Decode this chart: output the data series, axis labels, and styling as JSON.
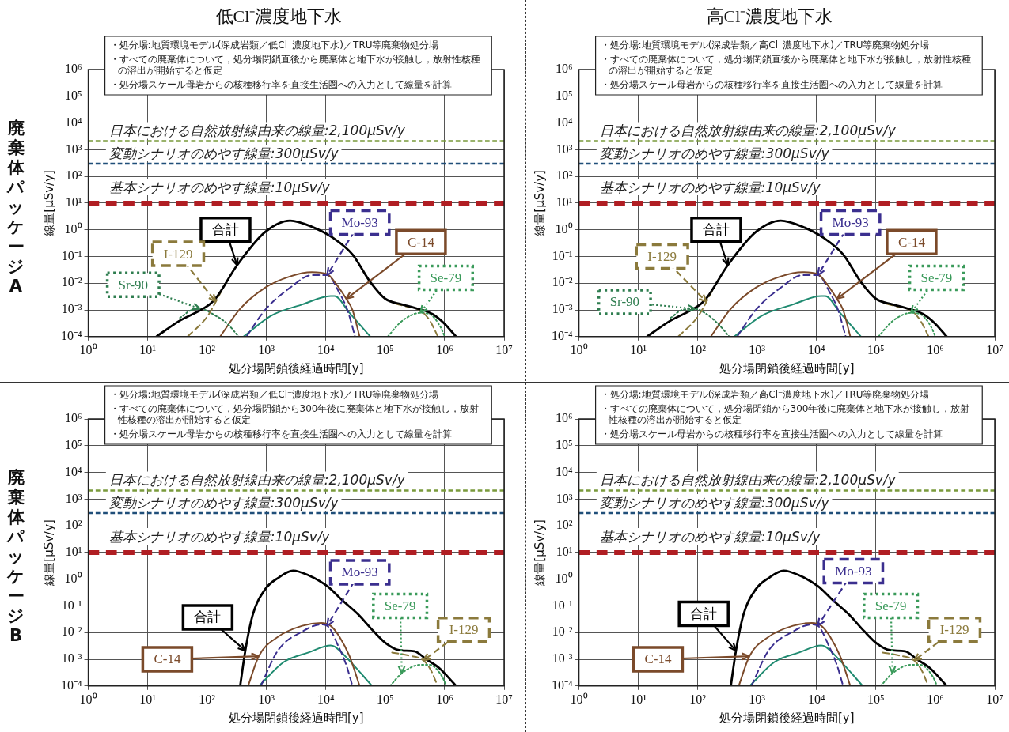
{
  "chart_data": [
    {
      "type": "line",
      "title": "低Cl⁻濃度地下水",
      "subtitle": "廃棄体パッケージA",
      "xlabel": "処分場閉鎖後経過時間[y]",
      "ylabel": "線量[μSv/y]",
      "log": "xy",
      "grid": true,
      "xlim": [
        1,
        10000000
      ],
      "ylim": [
        0.0001,
        1000000
      ],
      "xticks": [
        {
          "value": 1,
          "label": "10⁰"
        },
        {
          "value": 10,
          "label": "10¹"
        },
        {
          "value": 100,
          "label": "10²"
        },
        {
          "value": 1000,
          "label": "10³"
        },
        {
          "value": 10000,
          "label": "10⁴"
        },
        {
          "value": 100000,
          "label": "10⁵"
        },
        {
          "value": 1000000,
          "label": "10⁶"
        },
        {
          "value": 10000000,
          "label": "10⁷"
        }
      ],
      "yticks": [
        {
          "value": 0.0001,
          "label": "10⁻⁴"
        },
        {
          "value": 0.001,
          "label": "10⁻³"
        },
        {
          "value": 0.01,
          "label": "10⁻²"
        },
        {
          "value": 0.1,
          "label": "10⁻¹"
        },
        {
          "value": 1,
          "label": "10⁰"
        },
        {
          "value": 10,
          "label": "10¹"
        },
        {
          "value": 100,
          "label": "10²"
        },
        {
          "value": 1000,
          "label": "10³"
        },
        {
          "value": 10000,
          "label": "10⁴"
        },
        {
          "value": 100000,
          "label": "10⁵"
        },
        {
          "value": 1000000,
          "label": "10⁶"
        }
      ],
      "annotations": [
        "・処分場:地質環境モデル(深成岩類／低Cl⁻濃度地下水)／TRU等廃棄物処分場",
        "・すべての廃棄体について，処分場閉鎖直後から廃棄体と地下水が接触し，放射性核種の溶出が開始すると仮定",
        "・処分場スケール母岩からの核種移行率を直接生活圏への入力として線量を計算"
      ],
      "ref_lines": [
        {
          "axis": "y",
          "value": 2100,
          "label": "日本における自然放射線由来の線量:2,100μSv/y",
          "color": "#7a9a3c",
          "line_style": "dashed"
        },
        {
          "axis": "y",
          "value": 300,
          "label": "変動シナリオのめやす線量:300μSv/y",
          "color": "#1f4e79",
          "line_style": "dashed"
        },
        {
          "axis": "y",
          "value": 10,
          "label": "基本シナリオのめやす線量:10μSv/y",
          "color": "#b01e23",
          "line_style": "dashed"
        }
      ],
      "series": [
        {
          "name": "合計",
          "color": "#000000",
          "line_style": "solid",
          "x": [
            14,
            33,
            110,
            140,
            320,
            950,
            2500,
            5800,
            13000,
            28000,
            56000,
            100000,
            190000,
            310000,
            630000,
            1000000,
            1550000
          ],
          "values": [
            0.0001,
            0.00037,
            0.0016,
            0.0027,
            0.047,
            0.83,
            2.2,
            1.3,
            0.51,
            0.12,
            0.011,
            0.0026,
            0.0016,
            0.0012,
            0.00069,
            0.0003,
            0.0001
          ]
        },
        {
          "name": "I-129",
          "color": "#8b7a3c",
          "line_style": "dashed",
          "x": [
            47,
            100,
            140,
            180,
            1000,
            150000,
            210000,
            390000,
            560000,
            770000
          ],
          "values": [
            0.0001,
            0.00055,
            0.002,
            0.006,
            null,
            0.0017,
            0.0014,
            0.00095,
            0.0004,
            0.0001
          ]
        },
        {
          "name": "Sr-90",
          "color": "#2e7d4f",
          "line_style": "dotted",
          "x": [
            35,
            55,
            76,
            140,
            220,
            340
          ],
          "values": [
            0.0005,
            0.001,
            0.0011,
            0.0006,
            0.0003,
            0.0001
          ]
        },
        {
          "name": "C-14",
          "color": "#7b4a2a",
          "line_style": "solid",
          "x": [
            166,
            360,
            950,
            2500,
            5800,
            10500,
            15000,
            22000,
            28000,
            37000
          ],
          "values": [
            0.0001,
            0.0011,
            0.0068,
            0.018,
            0.026,
            0.022,
            0.0091,
            0.0026,
            0.001,
            0.0001
          ]
        },
        {
          "name": "Mo-93",
          "color": "#3b2f8f",
          "line_style": "dashed",
          "x": [
            460,
            950,
            2500,
            5800,
            10500,
            17000,
            23000,
            31000
          ],
          "values": [
            0.0001,
            0.001,
            0.0068,
            0.02,
            0.02,
            0.0042,
            0.001,
            0.0001
          ]
        },
        {
          "color": "#1f8a70",
          "line_style": "solid",
          "x": [
            410,
            1200,
            4000,
            12000,
            14000,
            25000,
            56000
          ],
          "values": [
            0.0001,
            0.00061,
            0.0016,
            0.0033,
            0.0033,
            0.00077,
            0.0001
          ]
        },
        {
          "name": "Se-79",
          "color": "#3a9a5a",
          "line_style": "dotted",
          "x": [
            110000,
            190000,
            390000,
            560000,
            850000,
            1000000
          ],
          "values": [
            0.0001,
            0.00038,
            0.00077,
            0.00069,
            0.00023,
            0.0001
          ]
        }
      ]
    },
    {
      "type": "line",
      "title": "高Cl⁻濃度地下水",
      "xlabel": "処分場閉鎖後経過時間[y]",
      "ylabel": "線量[μSv/y]",
      "log": "xy",
      "grid": true,
      "xlim": [
        1,
        10000000
      ],
      "ylim": [
        0.0001,
        1000000
      ],
      "xticks": [
        {
          "value": 1,
          "label": "10⁰"
        },
        {
          "value": 10,
          "label": "10¹"
        },
        {
          "value": 100,
          "label": "10²"
        },
        {
          "value": 1000,
          "label": "10³"
        },
        {
          "value": 10000,
          "label": "10⁴"
        },
        {
          "value": 100000,
          "label": "10⁵"
        },
        {
          "value": 1000000,
          "label": "10⁶"
        },
        {
          "value": 10000000,
          "label": "10⁷"
        }
      ],
      "yticks": [
        {
          "value": 0.0001,
          "label": "10⁻⁴"
        },
        {
          "value": 0.001,
          "label": "10⁻³"
        },
        {
          "value": 0.01,
          "label": "10⁻²"
        },
        {
          "value": 0.1,
          "label": "10⁻¹"
        },
        {
          "value": 1,
          "label": "10⁰"
        },
        {
          "value": 10,
          "label": "10¹"
        },
        {
          "value": 100,
          "label": "10²"
        },
        {
          "value": 1000,
          "label": "10³"
        },
        {
          "value": 10000,
          "label": "10⁴"
        },
        {
          "value": 100000,
          "label": "10⁵"
        },
        {
          "value": 1000000,
          "label": "10⁶"
        }
      ],
      "annotations": [
        "・処分場:地質環境モデル(深成岩類／高Cl⁻濃度地下水)／TRU等廃棄物処分場",
        "・すべての廃棄体について，処分場閉鎖直後から廃棄体と地下水が接触し，放射性核種の溶出が開始すると仮定",
        "・処分場スケール母岩からの核種移行率を直接生活圏への入力として線量を計算"
      ],
      "ref_lines": [
        {
          "axis": "y",
          "value": 2100,
          "label": "日本における自然放射線由来の線量:2,100μSv/y",
          "color": "#7a9a3c",
          "line_style": "dashed"
        },
        {
          "axis": "y",
          "value": 300,
          "label": "変動シナリオのめやす線量:300μSv/y",
          "color": "#1f4e79",
          "line_style": "dashed"
        },
        {
          "axis": "y",
          "value": 10,
          "label": "基本シナリオのめやす線量:10μSv/y",
          "color": "#b01e23",
          "line_style": "dashed"
        }
      ],
      "series": [
        {
          "name": "合計",
          "color": "#000000",
          "line_style": "solid",
          "x": [
            14,
            33,
            110,
            140,
            320,
            950,
            2500,
            5800,
            13000,
            28000,
            56000,
            100000,
            190000,
            310000,
            630000,
            1000000,
            1550000
          ],
          "values": [
            0.0001,
            0.00037,
            0.0016,
            0.0027,
            0.047,
            0.83,
            2.2,
            1.3,
            0.51,
            0.12,
            0.011,
            0.0026,
            0.0016,
            0.0012,
            0.00069,
            0.0003,
            0.0001
          ]
        },
        {
          "name": "I-129",
          "color": "#8b7a3c",
          "line_style": "dashed",
          "x": [
            47,
            100,
            140,
            180,
            1000,
            150000,
            210000,
            390000,
            560000,
            770000
          ],
          "values": [
            0.0001,
            0.00055,
            0.002,
            0.006,
            null,
            0.0017,
            0.0014,
            0.00095,
            0.0004,
            0.0001
          ]
        },
        {
          "name": "Sr-90",
          "color": "#2e7d4f",
          "line_style": "dotted",
          "x": [
            35,
            55,
            90,
            140,
            220,
            340
          ],
          "values": [
            0.0005,
            0.001,
            0.0011,
            0.0007,
            0.0003,
            0.0001
          ]
        },
        {
          "name": "C-14",
          "color": "#7b4a2a",
          "line_style": "solid",
          "x": [
            166,
            360,
            950,
            2500,
            5800,
            10500,
            15000,
            22000,
            28000,
            37000
          ],
          "values": [
            0.0001,
            0.0011,
            0.0068,
            0.018,
            0.026,
            0.022,
            0.0091,
            0.0026,
            0.001,
            0.0001
          ]
        },
        {
          "name": "Mo-93",
          "color": "#3b2f8f",
          "line_style": "dashed",
          "x": [
            460,
            950,
            2500,
            5800,
            10500,
            17000,
            23000,
            31000
          ],
          "values": [
            0.0001,
            0.001,
            0.0068,
            0.02,
            0.02,
            0.0042,
            0.001,
            0.0001
          ]
        },
        {
          "color": "#1f8a70",
          "line_style": "solid",
          "x": [
            410,
            1200,
            4000,
            12000,
            14000,
            25000,
            56000
          ],
          "values": [
            0.0001,
            0.00061,
            0.0016,
            0.0033,
            0.0033,
            0.00077,
            0.0001
          ]
        },
        {
          "name": "Se-79",
          "color": "#3a9a5a",
          "line_style": "dotted",
          "x": [
            110000,
            190000,
            390000,
            560000,
            850000,
            1000000
          ],
          "values": [
            0.0001,
            0.00038,
            0.00077,
            0.00069,
            0.00023,
            0.0001
          ]
        }
      ]
    },
    {
      "type": "line",
      "subtitle": "廃棄体パッケージB",
      "xlabel": "処分場閉鎖後経過時間[y]",
      "ylabel": "線量[μSv/y]",
      "log": "xy",
      "grid": true,
      "xlim": [
        1,
        10000000
      ],
      "ylim": [
        0.0001,
        1000000
      ],
      "xticks": [
        {
          "value": 1,
          "label": "10⁰"
        },
        {
          "value": 10,
          "label": "10¹"
        },
        {
          "value": 100,
          "label": "10²"
        },
        {
          "value": 1000,
          "label": "10³"
        },
        {
          "value": 10000,
          "label": "10⁴"
        },
        {
          "value": 100000,
          "label": "10⁵"
        },
        {
          "value": 1000000,
          "label": "10⁶"
        },
        {
          "value": 10000000,
          "label": "10⁷"
        }
      ],
      "yticks": [
        {
          "value": 0.0001,
          "label": "10⁻⁴"
        },
        {
          "value": 0.001,
          "label": "10⁻³"
        },
        {
          "value": 0.01,
          "label": "10⁻²"
        },
        {
          "value": 0.1,
          "label": "10⁻¹"
        },
        {
          "value": 1,
          "label": "10⁰"
        },
        {
          "value": 10,
          "label": "10¹"
        },
        {
          "value": 100,
          "label": "10²"
        },
        {
          "value": 1000,
          "label": "10³"
        },
        {
          "value": 10000,
          "label": "10⁴"
        },
        {
          "value": 100000,
          "label": "10⁵"
        },
        {
          "value": 1000000,
          "label": "10⁶"
        }
      ],
      "annotations": [
        "・処分場:地質環境モデル(深成岩類／低Cl⁻濃度地下水)／TRU等廃棄物処分場",
        "・すべての廃棄体について，処分場閉鎖から300年後に廃棄体と地下水が接触し，放射性核種の溶出が開始すると仮定",
        "・処分場スケール母岩からの核種移行率を直接生活圏への入力として線量を計算"
      ],
      "ref_lines": [
        {
          "axis": "y",
          "value": 2100,
          "label": "日本における自然放射線由来の線量:2,100μSv/y",
          "color": "#7a9a3c",
          "line_style": "dashed"
        },
        {
          "axis": "y",
          "value": 300,
          "label": "変動シナリオのめやす線量:300μSv/y",
          "color": "#1f4e79",
          "line_style": "dashed"
        },
        {
          "axis": "y",
          "value": 10,
          "label": "基本シナリオのめやす線量:10μSv/y",
          "color": "#b01e23",
          "line_style": "dashed"
        }
      ],
      "series": [
        {
          "name": "合計",
          "color": "#000000",
          "line_style": "solid",
          "x": [
            360,
            440,
            590,
            950,
            1550,
            2800,
            5100,
            10500,
            19000,
            35000,
            64000,
            105000,
            170000,
            310000,
            490000,
            800000,
            1500000
          ],
          "values": [
            0.0001,
            0.0021,
            0.048,
            0.42,
            1.1,
            2.1,
            1.4,
            0.55,
            0.16,
            0.048,
            0.011,
            0.0038,
            0.0022,
            0.002,
            0.001,
            0.00048,
            0.00011
          ]
        },
        {
          "name": "C-14",
          "color": "#7b4a2a",
          "line_style": "solid",
          "x": [
            490,
            740,
            1550,
            4000,
            8300,
            12000,
            17000,
            25000,
            37000
          ],
          "values": [
            0.0001,
            0.0013,
            0.0069,
            0.018,
            0.023,
            0.018,
            0.0069,
            0.0013,
            0.0001
          ]
        },
        {
          "name": "Mo-93",
          "color": "#3b2f8f",
          "line_style": "dashed",
          "x": [
            800,
            1550,
            4000,
            8300,
            10500,
            16000,
            22000,
            28000
          ],
          "values": [
            0.0001,
            0.0021,
            0.011,
            0.02,
            0.018,
            0.0033,
            0.00062,
            0.0001
          ]
        },
        {
          "color": "#1f8a70",
          "line_style": "solid",
          "x": [
            750,
            1950,
            5100,
            12000,
            14000,
            25000,
            60000
          ],
          "values": [
            0.0001,
            0.00079,
            0.0018,
            0.0033,
            0.003,
            0.00088,
            0.0001
          ]
        },
        {
          "name": "Se-79",
          "color": "#3a9a5a",
          "line_style": "dotted",
          "x": [
            120000,
            190000,
            390000,
            560000,
            900000,
            1070000
          ],
          "values": [
            0.0001,
            0.0003,
            0.00062,
            0.00062,
            0.00023,
            0.0001
          ]
        },
        {
          "name": "I-129",
          "color": "#8b7a3c",
          "line_style": "dashed",
          "x": [
            130000,
            240000,
            440000,
            590000,
            760000
          ],
          "values": [
            0.0018,
            0.0014,
            0.0009,
            0.00038,
            0.0001
          ]
        }
      ]
    },
    {
      "type": "line",
      "xlabel": "処分場閉鎖後経過時間[y]",
      "ylabel": "線量[μSv/y]",
      "log": "xy",
      "grid": true,
      "xlim": [
        1,
        10000000
      ],
      "ylim": [
        0.0001,
        1000000
      ],
      "xticks": [
        {
          "value": 1,
          "label": "10⁰"
        },
        {
          "value": 10,
          "label": "10¹"
        },
        {
          "value": 100,
          "label": "10²"
        },
        {
          "value": 1000,
          "label": "10³"
        },
        {
          "value": 10000,
          "label": "10⁴"
        },
        {
          "value": 100000,
          "label": "10⁵"
        },
        {
          "value": 1000000,
          "label": "10⁶"
        },
        {
          "value": 10000000,
          "label": "10⁷"
        }
      ],
      "yticks": [
        {
          "value": 0.0001,
          "label": "10⁻⁴"
        },
        {
          "value": 0.001,
          "label": "10⁻³"
        },
        {
          "value": 0.01,
          "label": "10⁻²"
        },
        {
          "value": 0.1,
          "label": "10⁻¹"
        },
        {
          "value": 1,
          "label": "10⁰"
        },
        {
          "value": 10,
          "label": "10¹"
        },
        {
          "value": 100,
          "label": "10²"
        },
        {
          "value": 1000,
          "label": "10³"
        },
        {
          "value": 10000,
          "label": "10⁴"
        },
        {
          "value": 100000,
          "label": "10⁵"
        },
        {
          "value": 1000000,
          "label": "10⁶"
        }
      ],
      "annotations": [
        "・処分場:地質環境モデル(深成岩類／高Cl⁻濃度地下水)／TRU等廃棄物処分場",
        "・すべての廃棄体について，処分場閉鎖から300年後に廃棄体と地下水が接触し，放射性核種の溶出が開始すると仮定",
        "・処分場スケール母岩からの核種移行率を直接生活圏への入力として線量を計算"
      ],
      "ref_lines": [
        {
          "axis": "y",
          "value": 2100,
          "label": "日本における自然放射線由来の線量:2,100μSv/y",
          "color": "#7a9a3c",
          "line_style": "dashed"
        },
        {
          "axis": "y",
          "value": 300,
          "label": "変動シナリオのめやす線量:300μSv/y",
          "color": "#1f4e79",
          "line_style": "dashed"
        },
        {
          "axis": "y",
          "value": 10,
          "label": "基本シナリオのめやす線量:10μSv/y",
          "color": "#b01e23",
          "line_style": "dashed"
        }
      ],
      "series": [
        {
          "name": "合計",
          "color": "#000000",
          "line_style": "solid",
          "x": [
            360,
            440,
            590,
            950,
            1550,
            2800,
            5100,
            10500,
            19000,
            35000,
            64000,
            105000,
            170000,
            310000,
            490000,
            800000,
            1500000
          ],
          "values": [
            0.0001,
            0.0021,
            0.048,
            0.42,
            1.1,
            2.1,
            1.4,
            0.55,
            0.16,
            0.048,
            0.011,
            0.0038,
            0.0022,
            0.002,
            0.001,
            0.00048,
            0.00011
          ]
        },
        {
          "name": "C-14",
          "color": "#7b4a2a",
          "line_style": "solid",
          "x": [
            490,
            740,
            1550,
            4000,
            8300,
            12000,
            17000,
            25000,
            37000
          ],
          "values": [
            0.0001,
            0.0013,
            0.0069,
            0.018,
            0.023,
            0.018,
            0.0069,
            0.0013,
            0.0001
          ]
        },
        {
          "name": "Mo-93",
          "color": "#3b2f8f",
          "line_style": "dashed",
          "x": [
            800,
            1550,
            4000,
            8300,
            10500,
            16000,
            22000,
            28000
          ],
          "values": [
            0.0001,
            0.0021,
            0.011,
            0.02,
            0.018,
            0.0033,
            0.00062,
            0.0001
          ]
        },
        {
          "color": "#1f8a70",
          "line_style": "solid",
          "x": [
            750,
            1950,
            5100,
            12000,
            14000,
            25000,
            60000
          ],
          "values": [
            0.0001,
            0.00079,
            0.0018,
            0.0033,
            0.003,
            0.00088,
            0.0001
          ]
        },
        {
          "name": "Se-79",
          "color": "#3a9a5a",
          "line_style": "dotted",
          "x": [
            120000,
            190000,
            390000,
            560000,
            900000,
            1070000
          ],
          "values": [
            0.0001,
            0.0003,
            0.00062,
            0.00062,
            0.00023,
            0.0001
          ]
        },
        {
          "name": "I-129",
          "color": "#8b7a3c",
          "line_style": "dashed",
          "x": [
            130000,
            240000,
            440000,
            590000,
            760000
          ],
          "values": [
            0.0018,
            0.0014,
            0.0009,
            0.00038,
            0.0001
          ]
        }
      ]
    }
  ]
}
